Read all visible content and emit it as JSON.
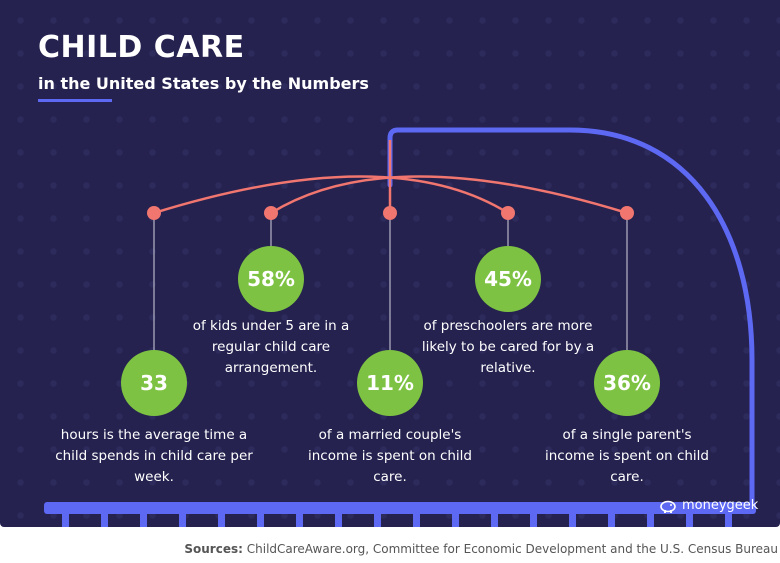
{
  "header": {
    "title": "CHILD CARE",
    "subtitle": "in the United States by the Numbers"
  },
  "stats": [
    {
      "value": "33",
      "text": "hours is the average time a child spends in child care per week."
    },
    {
      "value": "58%",
      "text": "of kids under 5 are in a regular child care arrangement."
    },
    {
      "value": "11%",
      "text": "of a married couple's income is spent on child care."
    },
    {
      "value": "45%",
      "text": "of preschoolers are more likely to be cared for by a relative."
    },
    {
      "value": "36%",
      "text": "of a single parent's income is spent on child care."
    }
  ],
  "logo": {
    "text": "moneygeek",
    "icon": "piggy-bank-icon"
  },
  "sources": {
    "label": "Sources:",
    "text": "ChildCareAware.org, Committee for Economic Development and the U.S. Census Bureau"
  },
  "colors": {
    "background": "#25224f",
    "accent_blue": "#5d68f3",
    "string_coral": "#f0766f",
    "circle_green": "#7dc242"
  }
}
